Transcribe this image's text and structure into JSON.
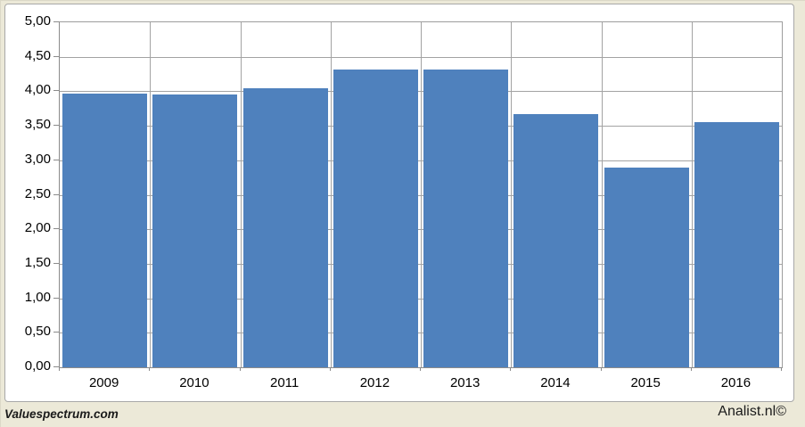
{
  "chart_data": {
    "type": "bar",
    "categories": [
      "2009",
      "2010",
      "2011",
      "2012",
      "2013",
      "2014",
      "2015",
      "2016"
    ],
    "values": [
      3.97,
      3.95,
      4.04,
      4.31,
      4.31,
      3.67,
      2.9,
      3.55
    ],
    "title": "",
    "xlabel": "",
    "ylabel": "",
    "ylim": [
      0,
      5
    ],
    "ytick_step": 0.5,
    "ytick_labels": [
      "0,00",
      "0,50",
      "1,00",
      "1,50",
      "2,00",
      "2,50",
      "3,00",
      "3,50",
      "4,00",
      "4,50",
      "5,00"
    ],
    "grid": true,
    "legend": "none",
    "bar_color": "#4f81bd",
    "gridline_color": "#a3a3a3",
    "axis_color": "#8b8b8b",
    "background_color": "#ece9d8",
    "plot_background_color": "#ffffff"
  },
  "footer": {
    "left_text": "Valuespectrum.com",
    "right_text": "Analist.nl©"
  }
}
